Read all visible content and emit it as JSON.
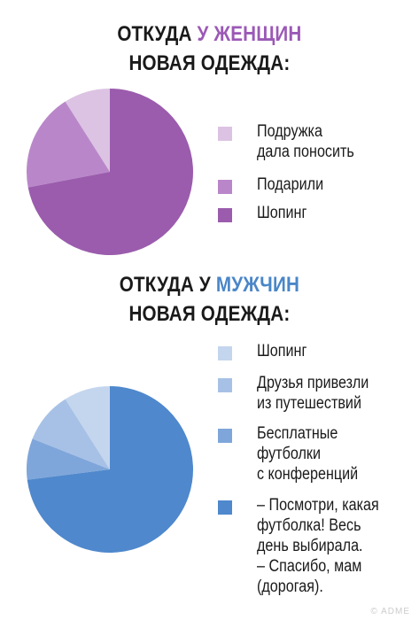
{
  "chart_data": [
    {
      "type": "pie",
      "title_parts": [
        "ОТКУДА ",
        "У ЖЕНЩИН",
        "НОВАЯ ОДЕЖДА:"
      ],
      "legend": [
        "Подружка\nдала поносить",
        "Подарили",
        "Шопинг"
      ],
      "values": [
        9,
        19,
        72
      ],
      "colors": [
        "#dcc3e3",
        "#b987c9",
        "#9b5cad"
      ]
    },
    {
      "type": "pie",
      "title_parts": [
        "ОТКУДА У ",
        "МУЖЧИН",
        "НОВАЯ ОДЕЖДА:"
      ],
      "legend": [
        "Шопинг",
        "Друзья привезли\nиз путешествий",
        "Бесплатные\nфутболки\nс конференций",
        "– Посмотри, какая\nфутболка! Весь\nдень выбирала.\n– Спасибо, мам\n(дорогая)."
      ],
      "values": [
        9,
        10,
        8,
        73
      ],
      "colors": [
        "#c4d6ee",
        "#a7c1e6",
        "#7fa6da",
        "#4f88cc"
      ]
    }
  ],
  "watermark": "© ADME"
}
